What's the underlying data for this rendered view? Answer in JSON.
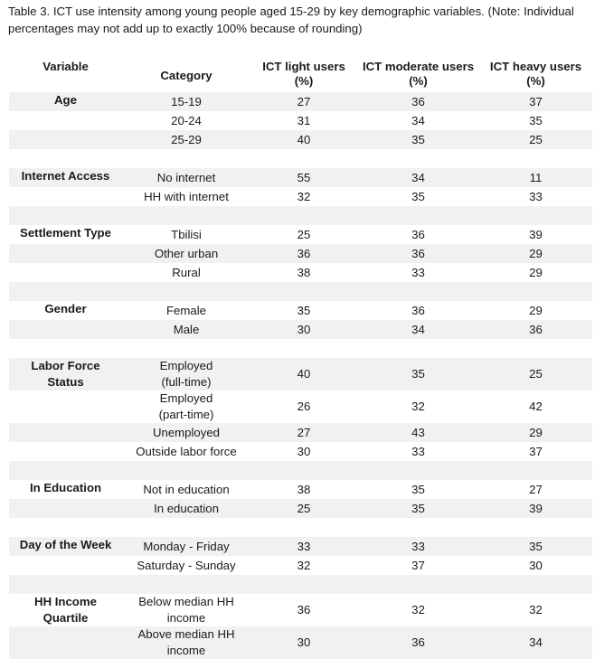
{
  "caption": "Table 3. ICT use intensity among young people aged 15-29 by key demographic variables. (Note: Individual percentages may not add up to exactly 100% because of rounding)",
  "headers": {
    "variable": "Variable",
    "category": "Category",
    "light": "ICT light users (%)",
    "moderate": "ICT moderate users (%)",
    "heavy": "ICT heavy users (%)"
  },
  "groups": [
    {
      "variable": "Age",
      "rows": [
        {
          "category": "15-19",
          "light": "27",
          "moderate": "36",
          "heavy": "37"
        },
        {
          "category": "20-24",
          "light": "31",
          "moderate": "34",
          "heavy": "35"
        },
        {
          "category": "25-29",
          "light": "40",
          "moderate": "35",
          "heavy": "25"
        }
      ]
    },
    {
      "variable": "Internet Access",
      "rows": [
        {
          "category": "No internet",
          "light": "55",
          "moderate": "34",
          "heavy": "11"
        },
        {
          "category": "HH with internet",
          "light": "32",
          "moderate": "35",
          "heavy": "33"
        }
      ]
    },
    {
      "variable": "Settlement Type",
      "rows": [
        {
          "category": "Tbilisi",
          "light": "25",
          "moderate": "36",
          "heavy": "39"
        },
        {
          "category": "Other urban",
          "light": "36",
          "moderate": "36",
          "heavy": "29"
        },
        {
          "category": "Rural",
          "light": "38",
          "moderate": "33",
          "heavy": "29"
        }
      ]
    },
    {
      "variable": "Gender",
      "rows": [
        {
          "category": "Female",
          "light": "35",
          "moderate": "36",
          "heavy": "29"
        },
        {
          "category": "Male",
          "light": "30",
          "moderate": "34",
          "heavy": "36"
        }
      ]
    },
    {
      "variable": "Labor Force Status",
      "rows": [
        {
          "category": "Employed (full-time)",
          "light": "40",
          "moderate": "35",
          "heavy": "25"
        },
        {
          "category": "Employed (part-time)",
          "light": "26",
          "moderate": "32",
          "heavy": "42"
        },
        {
          "category": "Unemployed",
          "light": "27",
          "moderate": "43",
          "heavy": "29"
        },
        {
          "category": "Outside labor force",
          "light": "30",
          "moderate": "33",
          "heavy": "37"
        }
      ]
    },
    {
      "variable": "In Education",
      "rows": [
        {
          "category": "Not in education",
          "light": "38",
          "moderate": "35",
          "heavy": "27"
        },
        {
          "category": "In education",
          "light": "25",
          "moderate": "35",
          "heavy": "39"
        }
      ]
    },
    {
      "variable": "Day of the Week",
      "rows": [
        {
          "category": "Monday - Friday",
          "light": "33",
          "moderate": "33",
          "heavy": "35"
        },
        {
          "category": "Saturday - Sunday",
          "light": "32",
          "moderate": "37",
          "heavy": "30"
        }
      ]
    },
    {
      "variable": "HH Income Quartile",
      "rows": [
        {
          "category": "Below median HH income",
          "light": "36",
          "moderate": "32",
          "heavy": "32"
        },
        {
          "category": "Above median HH income",
          "light": "30",
          "moderate": "36",
          "heavy": "34"
        }
      ]
    }
  ]
}
